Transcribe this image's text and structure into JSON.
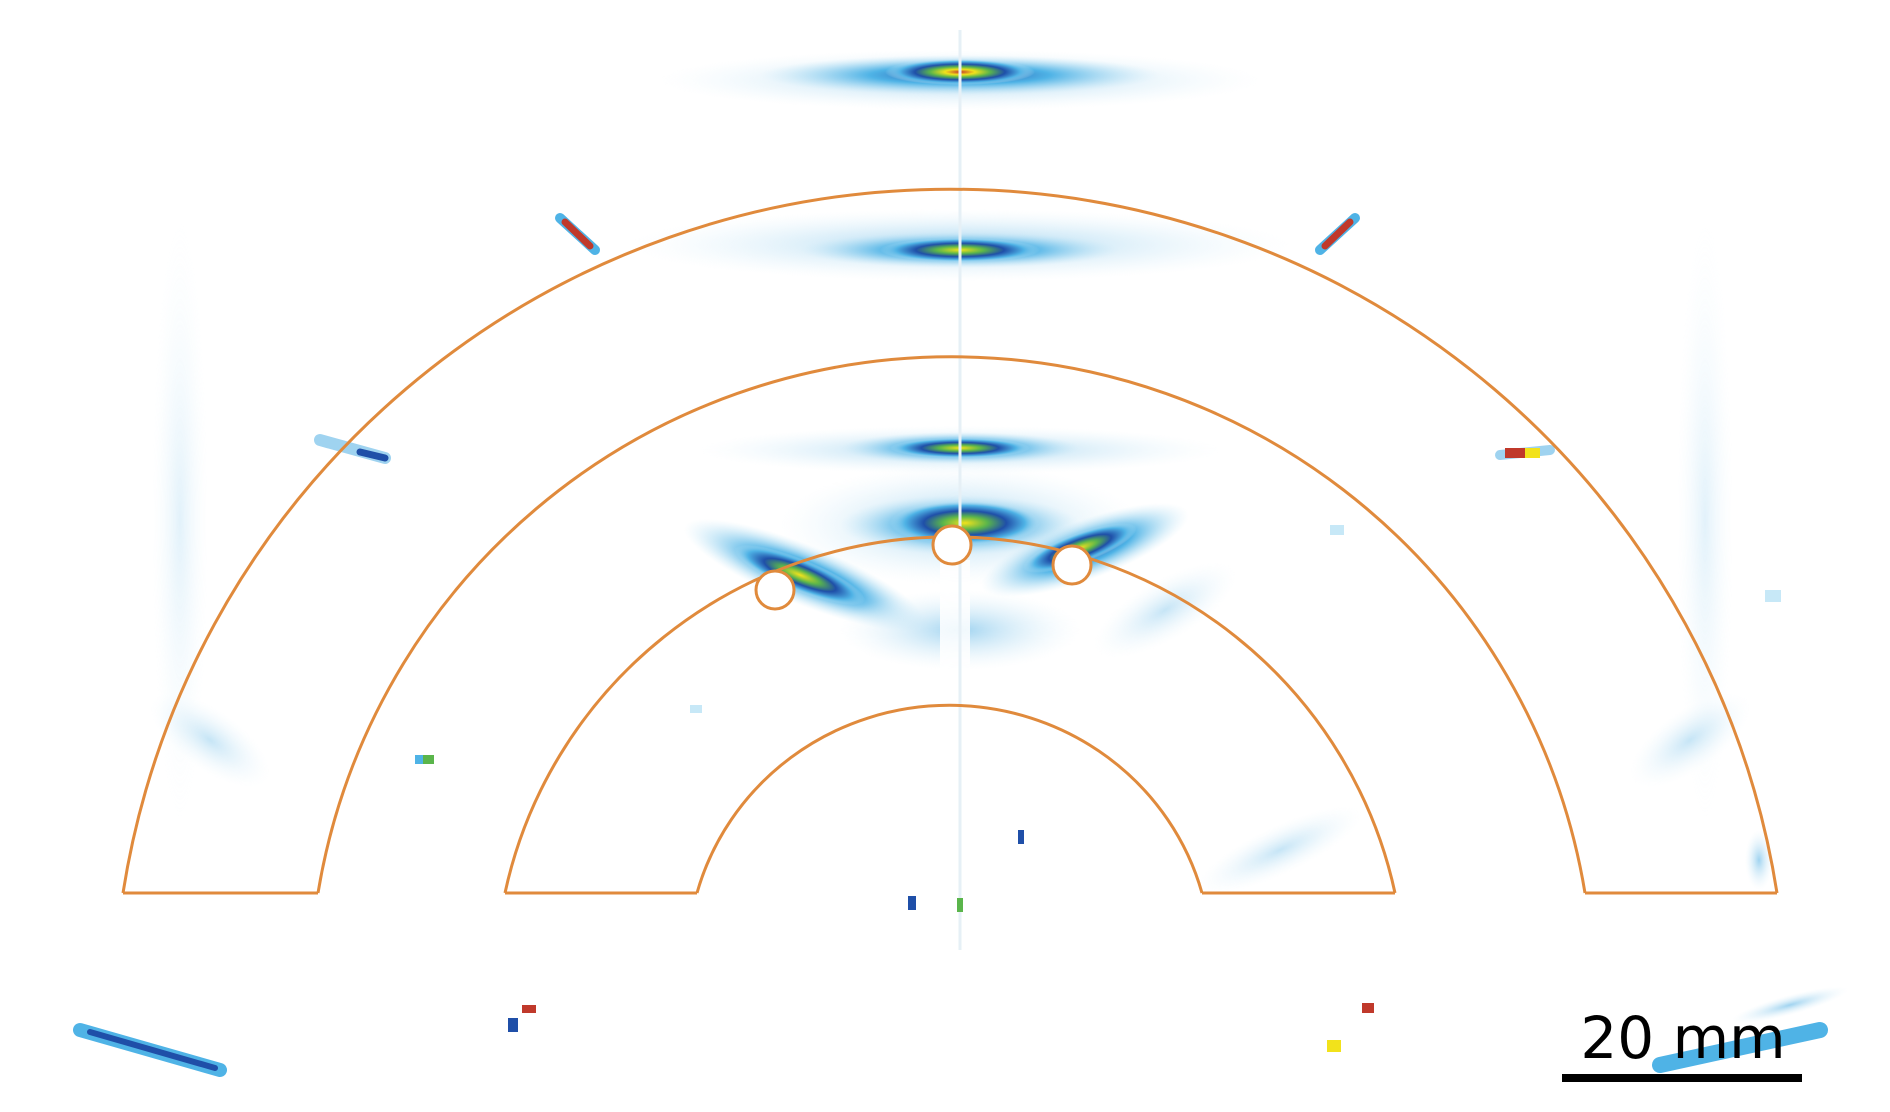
{
  "image": {
    "description_kind": "scientific-image",
    "colors": {
      "outline": "#e08a3c",
      "background": "#ffffff",
      "scale_bar": "#000000",
      "heat_low": "#c7e8f7",
      "heat_mid_low": "#4fb3e6",
      "heat_mid": "#1f4fa8",
      "heat_mid_high": "#5ab54b",
      "heat_high": "#f2e21b",
      "heat_peak": "#c0392b"
    }
  },
  "scale_bar": {
    "label": "20 mm"
  }
}
